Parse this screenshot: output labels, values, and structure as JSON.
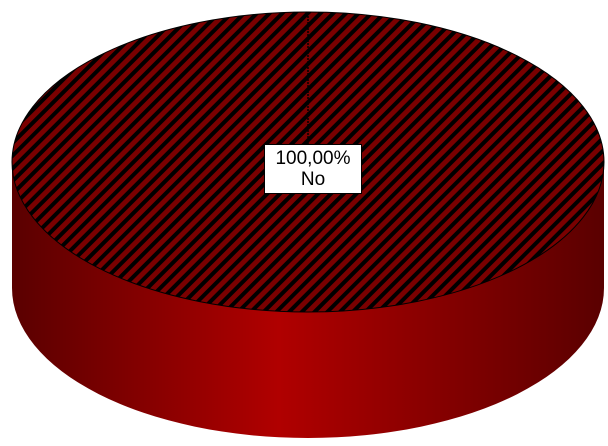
{
  "chart_data": {
    "type": "pie",
    "categories": [
      "No"
    ],
    "values": [
      100
    ],
    "labels": [
      {
        "percent": "100,00%",
        "category": "No"
      }
    ],
    "colors": {
      "slice_pattern_fg": "#000000",
      "slice_pattern_bg": "#7a0000",
      "side_dark": "#5a0000",
      "side_light": "#b00000"
    },
    "style": "3d-pie-hatched",
    "legend": "none"
  }
}
